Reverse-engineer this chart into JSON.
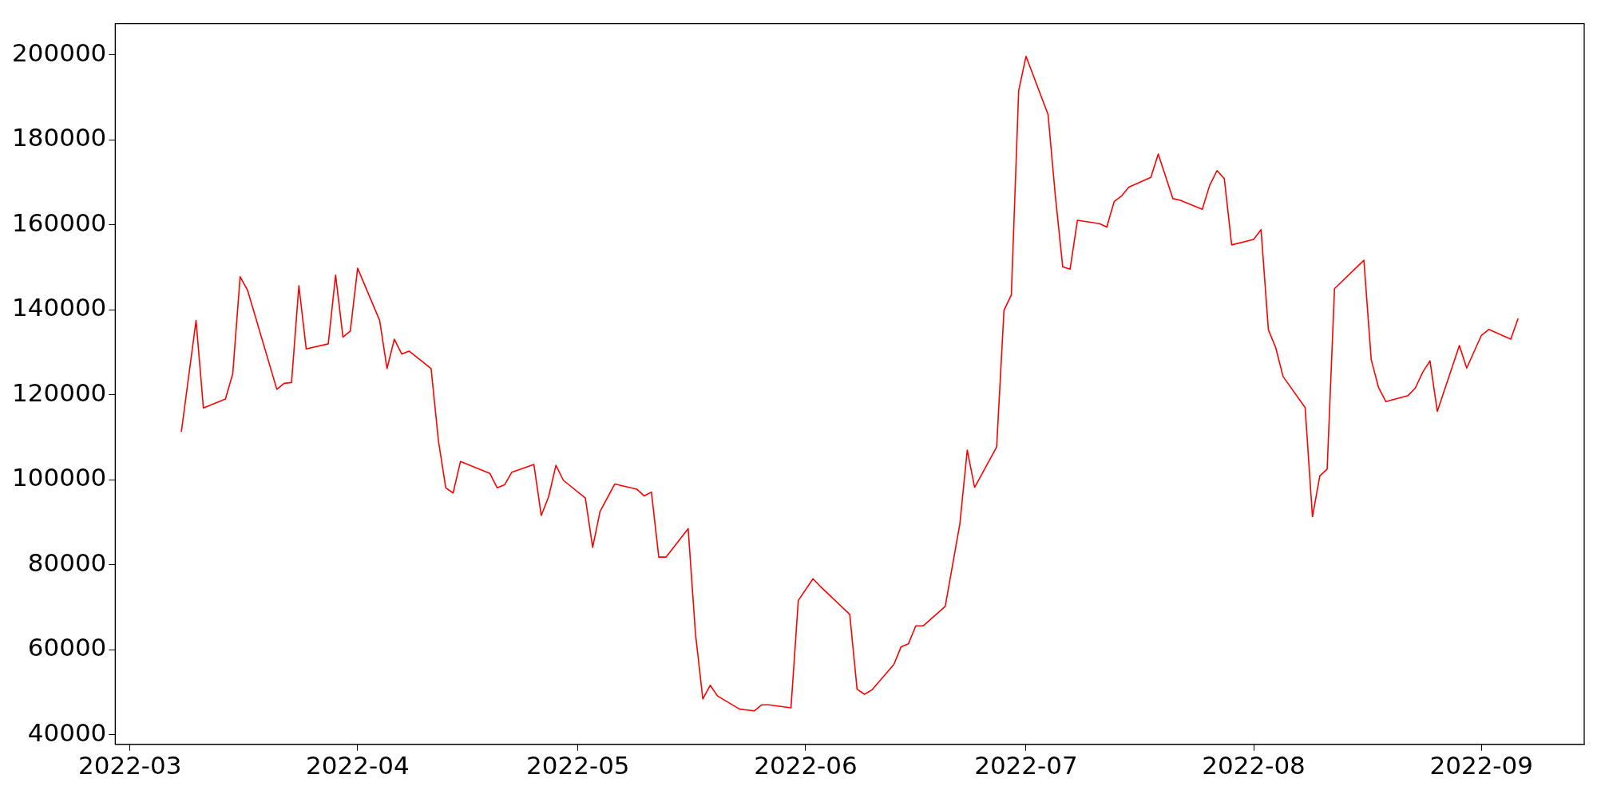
{
  "chart_data": {
    "type": "line",
    "x": [
      "2022-03-08",
      "2022-03-10",
      "2022-03-11",
      "2022-03-14",
      "2022-03-15",
      "2022-03-16",
      "2022-03-17",
      "2022-03-21",
      "2022-03-22",
      "2022-03-23",
      "2022-03-24",
      "2022-03-25",
      "2022-03-28",
      "2022-03-29",
      "2022-03-30",
      "2022-03-31",
      "2022-04-01",
      "2022-04-04",
      "2022-04-05",
      "2022-04-06",
      "2022-04-07",
      "2022-04-08",
      "2022-04-11",
      "2022-04-12",
      "2022-04-13",
      "2022-04-14",
      "2022-04-15",
      "2022-04-19",
      "2022-04-20",
      "2022-04-21",
      "2022-04-22",
      "2022-04-25",
      "2022-04-26",
      "2022-04-27",
      "2022-04-28",
      "2022-04-29",
      "2022-05-02",
      "2022-05-03",
      "2022-05-04",
      "2022-05-06",
      "2022-05-09",
      "2022-05-10",
      "2022-05-11",
      "2022-05-12",
      "2022-05-13",
      "2022-05-16",
      "2022-05-17",
      "2022-05-18",
      "2022-05-19",
      "2022-05-20",
      "2022-05-23",
      "2022-05-24",
      "2022-05-25",
      "2022-05-26",
      "2022-05-27",
      "2022-05-30",
      "2022-05-31",
      "2022-06-02",
      "2022-06-03",
      "2022-06-07",
      "2022-06-08",
      "2022-06-09",
      "2022-06-10",
      "2022-06-13",
      "2022-06-14",
      "2022-06-15",
      "2022-06-16",
      "2022-06-17",
      "2022-06-20",
      "2022-06-22",
      "2022-06-23",
      "2022-06-24",
      "2022-06-27",
      "2022-06-28",
      "2022-06-29",
      "2022-06-30",
      "2022-07-01",
      "2022-07-04",
      "2022-07-05",
      "2022-07-06",
      "2022-07-07",
      "2022-07-08",
      "2022-07-11",
      "2022-07-12",
      "2022-07-13",
      "2022-07-14",
      "2022-07-15",
      "2022-07-18",
      "2022-07-19",
      "2022-07-21",
      "2022-07-22",
      "2022-07-25",
      "2022-07-26",
      "2022-07-27",
      "2022-07-28",
      "2022-07-29",
      "2022-08-01",
      "2022-08-02",
      "2022-08-03",
      "2022-08-04",
      "2022-08-05",
      "2022-08-08",
      "2022-08-09",
      "2022-08-10",
      "2022-08-11",
      "2022-08-12",
      "2022-08-16",
      "2022-08-17",
      "2022-08-18",
      "2022-08-19",
      "2022-08-22",
      "2022-08-23",
      "2022-08-24",
      "2022-08-25",
      "2022-08-26",
      "2022-08-29",
      "2022-08-30",
      "2022-09-01",
      "2022-09-02",
      "2022-09-05",
      "2022-09-06"
    ],
    "series": [
      {
        "color": "#ff0000",
        "values": [
          111300,
          137500,
          116900,
          119000,
          125000,
          147800,
          144700,
          121300,
          122700,
          122900,
          145700,
          130800,
          132000,
          148200,
          133600,
          135000,
          149800,
          137500,
          126200,
          133100,
          129600,
          130300,
          126200,
          109200,
          98100,
          96900,
          104300,
          101500,
          98100,
          98800,
          101800,
          103600,
          91600,
          96000,
          103400,
          99900,
          95700,
          84100,
          92500,
          99000,
          97800,
          96200,
          97100,
          81800,
          81800,
          88500,
          63700,
          48400,
          51600,
          49100,
          46000,
          45800,
          45600,
          47000,
          47000,
          46300,
          71600,
          76700,
          74900,
          68300,
          50700,
          49500,
          50500,
          56500,
          60700,
          61400,
          65600,
          65600,
          70200,
          89700,
          107000,
          98200,
          107700,
          139900,
          143500,
          191600,
          199700,
          186000,
          166700,
          150100,
          149600,
          161100,
          160300,
          159500,
          165500,
          166800,
          168900,
          171200,
          176700,
          166200,
          165800,
          163700,
          169300,
          172800,
          170900,
          155300,
          156600,
          158900,
          135300,
          131100,
          124300,
          117000,
          91300,
          100900,
          102500,
          145000,
          151700,
          128300,
          121700,
          118400,
          119800,
          121600,
          125300,
          128000,
          116100,
          131600,
          126300,
          134000,
          135400,
          133100,
          138000
        ]
      }
    ],
    "xlim": [
      "2022-02-27",
      "2022-09-15"
    ],
    "xticks": [
      "2022-03",
      "2022-04",
      "2022-05",
      "2022-06",
      "2022-07",
      "2022-08",
      "2022-09"
    ],
    "ylim": [
      37700,
      207400
    ],
    "yticks": [
      40000,
      60000,
      80000,
      100000,
      120000,
      140000,
      160000,
      180000,
      200000
    ],
    "grid": false,
    "legend": false,
    "marker": "none",
    "line_style": "solid"
  }
}
